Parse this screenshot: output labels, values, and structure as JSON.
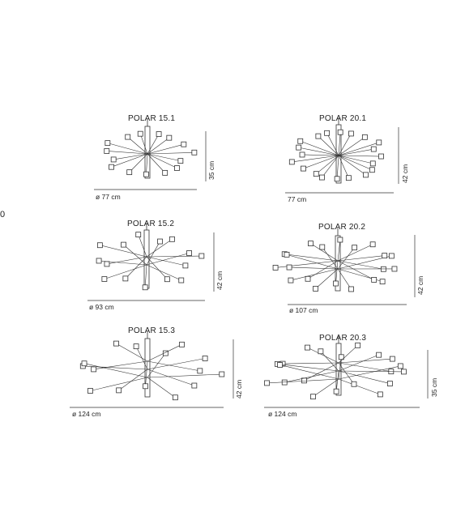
{
  "stray_mark": "0",
  "models": [
    {
      "id": "p151",
      "title": "POLAR 15.1",
      "width": "ø 77 cm",
      "height": "35 cm"
    },
    {
      "id": "p152",
      "title": "POLAR 15.2",
      "width": "ø 93 cm",
      "height": "42 cm"
    },
    {
      "id": "p153",
      "title": "POLAR 15.3",
      "width": "ø 124 cm",
      "height": "42 cm"
    },
    {
      "id": "p201",
      "title": "POLAR 20.1",
      "width": "77 cm",
      "height": "42 cm"
    },
    {
      "id": "p202",
      "title": "POLAR 20.2",
      "width": "ø 107 cm",
      "height": "42 cm"
    },
    {
      "id": "p203",
      "title": "POLAR 20.3",
      "width": "ø 124 cm",
      "height": "35 cm"
    }
  ]
}
